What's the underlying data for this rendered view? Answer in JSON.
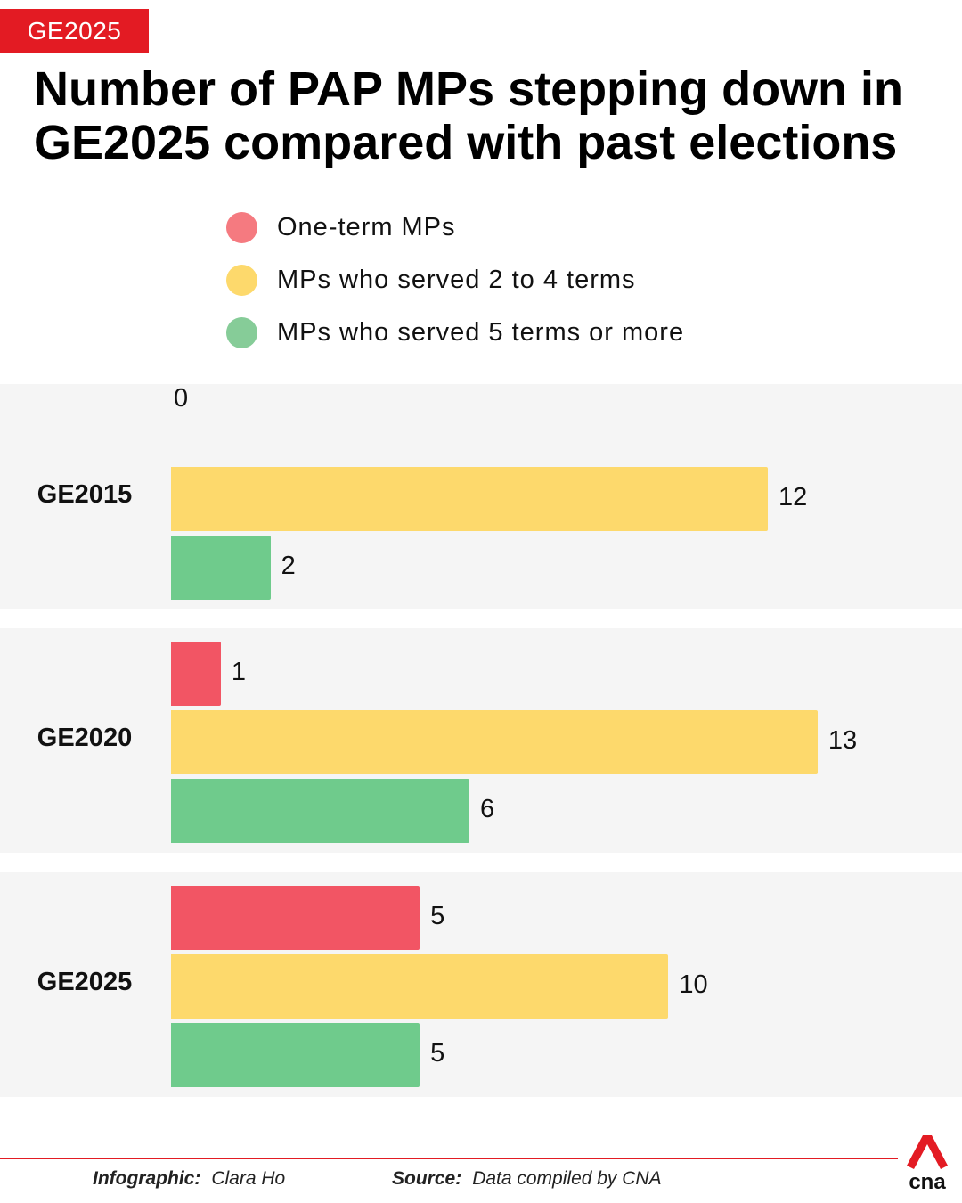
{
  "tag": "GE2025",
  "title_line1": "Number of PAP MPs stepping down in",
  "title_line2": "GE2025 compared with past elections",
  "colors": {
    "accent": "#e31b23",
    "one_term": "#f25564",
    "two_to_four": "#fdd96c",
    "five_plus": "#6fcb8c",
    "band": "#f5f5f5"
  },
  "chart_data": {
    "type": "bar",
    "orientation": "horizontal",
    "categories": [
      "GE2015",
      "GE2020",
      "GE2025"
    ],
    "series": [
      {
        "name": "One-term MPs",
        "legend_color": "#f57a80",
        "values": [
          0,
          1,
          5
        ]
      },
      {
        "name": "MPs who served 2 to 4 terms",
        "legend_color": "#fdd96c",
        "values": [
          12,
          13,
          10
        ]
      },
      {
        "name": "MPs who served 5 terms or more",
        "legend_color": "#86cc98",
        "values": [
          2,
          6,
          5
        ]
      }
    ],
    "legend_position": "top",
    "grid": false,
    "xlim": [
      0,
      13
    ]
  },
  "footer": {
    "infographic_label": "Infographic:",
    "infographic_value": "Clara Ho",
    "source_label": "Source:",
    "source_value": "Data compiled by CNA",
    "logo_text": "cna"
  }
}
